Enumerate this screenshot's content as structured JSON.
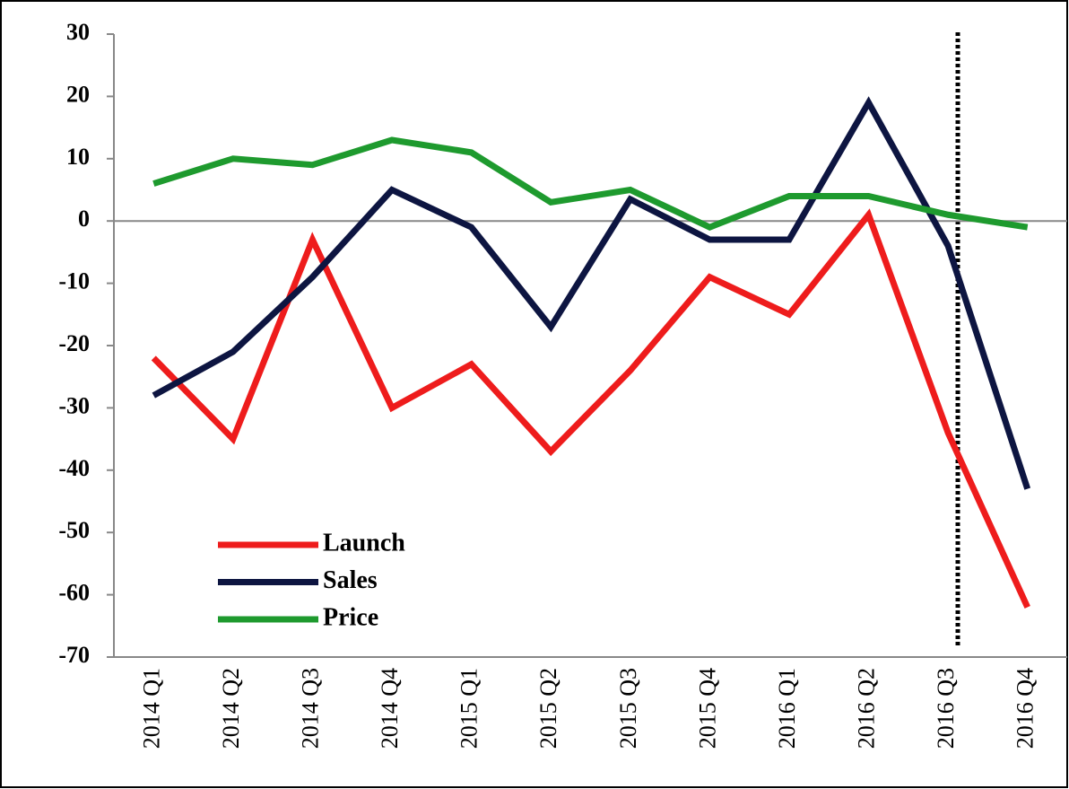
{
  "chart_data": {
    "type": "line",
    "categories": [
      "2014 Q1",
      "2014 Q2",
      "2014 Q3",
      "2014 Q4",
      "2015 Q1",
      "2015 Q2",
      "2015 Q3",
      "2015 Q4",
      "2016 Q1",
      "2016 Q2",
      "2016 Q3",
      "2016 Q4"
    ],
    "series": [
      {
        "name": "Launch",
        "color": "#ee1c1c",
        "values": [
          -22,
          -35,
          -3,
          -30,
          -23,
          -37,
          -24,
          -9,
          -15,
          1,
          -34,
          -62
        ]
      },
      {
        "name": "Sales",
        "color": "#0d1541",
        "values": [
          -28,
          -21,
          -9,
          5,
          -1,
          -17,
          3.5,
          -3,
          -3,
          19,
          -4,
          -43
        ]
      },
      {
        "name": "Price",
        "color": "#1e9a2e",
        "values": [
          6,
          10,
          9,
          13,
          11,
          3,
          5,
          -1,
          4,
          4,
          1,
          -1
        ]
      }
    ],
    "ylim": [
      -70,
      30
    ],
    "yticks": [
      -70,
      -60,
      -50,
      -40,
      -30,
      -20,
      -10,
      0,
      10,
      20,
      30
    ],
    "legend": "lower left"
  }
}
